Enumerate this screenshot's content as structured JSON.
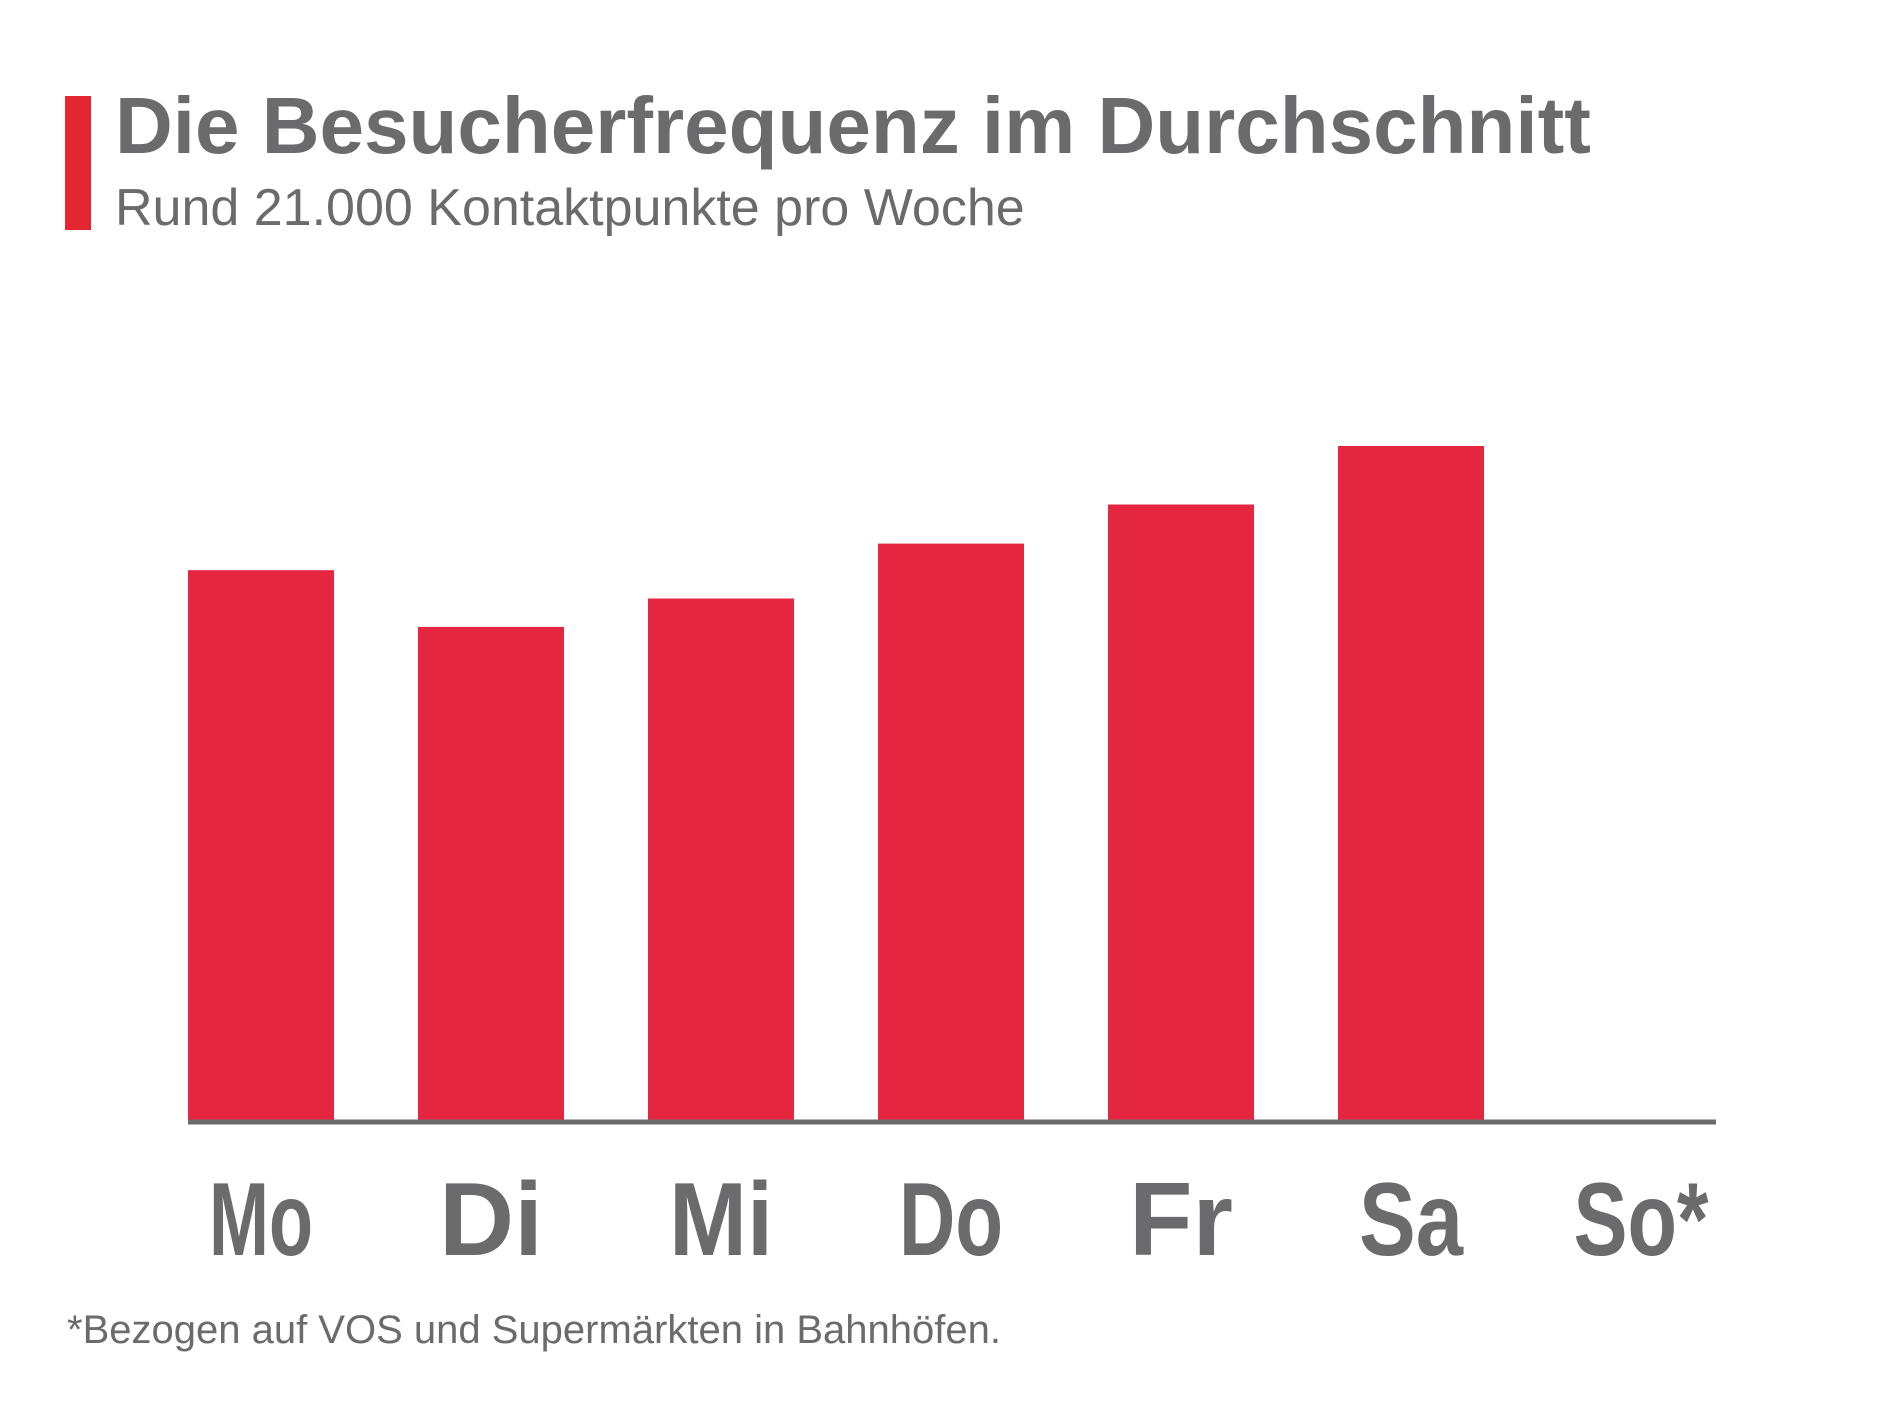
{
  "header": {
    "title": "Die Besucherfrequenz im Durchschnitt",
    "subtitle": "Rund 21.000 Kontaktpunkte pro Woche"
  },
  "footnote": "*Bezogen auf VOS und Supermärkten in Bahnhöfen.",
  "colors": {
    "bar": "#e52641",
    "accent": "#e3262f",
    "text": "#6b6b6d",
    "axis": "#6b6b6d"
  },
  "chart_data": {
    "type": "bar",
    "title": "Die Besucherfrequenz im Durchschnitt",
    "subtitle": "Rund 21.000 Kontaktpunkte pro Woche",
    "categories": [
      "Mo",
      "Di",
      "Mi",
      "Do",
      "Fr",
      "Sa",
      "So*"
    ],
    "values": [
      3100,
      2780,
      2940,
      3250,
      3470,
      3800,
      0
    ],
    "xlabel": "",
    "ylabel": "",
    "ylim": [
      0,
      3800
    ],
    "grid": false,
    "legend": "none",
    "y_axis_labels": false
  }
}
